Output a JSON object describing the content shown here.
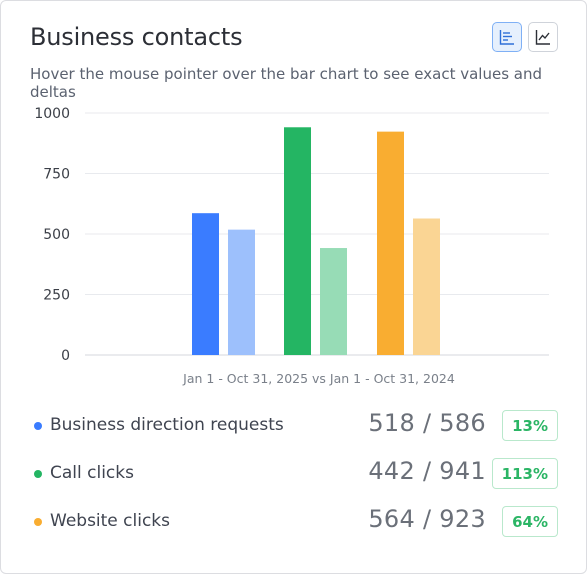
{
  "header": {
    "title": "Business contacts",
    "subtitle": "Hover the mouse pointer over the bar chart to see exact values and deltas"
  },
  "view_toggle": {
    "bar_icon": "bar-chart-icon",
    "line_icon": "line-chart-icon",
    "active": "bar"
  },
  "chart_data": {
    "type": "bar",
    "xlabel": "Jan 1 - Oct 31, 2025 vs Jan 1 - Oct 31, 2024",
    "ylabel": "",
    "ylim": [
      0,
      1000
    ],
    "yticks": [
      "0",
      "250",
      "500",
      "750",
      "1000"
    ],
    "grid": true,
    "series": [
      {
        "values": [
          586,
          941,
          923
        ]
      },
      {
        "values": [
          518,
          442,
          564
        ]
      }
    ],
    "groups": [
      "Business direction requests",
      "Call clicks",
      "Website clicks"
    ],
    "colors": {
      "current": [
        "#3a7cff",
        "#24b563",
        "#f9ad31"
      ],
      "previous": [
        "#9dc0fc",
        "#97dcb6",
        "#fad594"
      ]
    }
  },
  "metrics": [
    {
      "label": "Business direction requests",
      "value": "518 / 586",
      "delta": "13%",
      "color": "#3a7cff"
    },
    {
      "label": "Call clicks",
      "value": "442 / 941",
      "delta": "113%",
      "color": "#24b563"
    },
    {
      "label": "Website clicks",
      "value": "564 / 923",
      "delta": "64%",
      "color": "#f9ad31"
    }
  ]
}
